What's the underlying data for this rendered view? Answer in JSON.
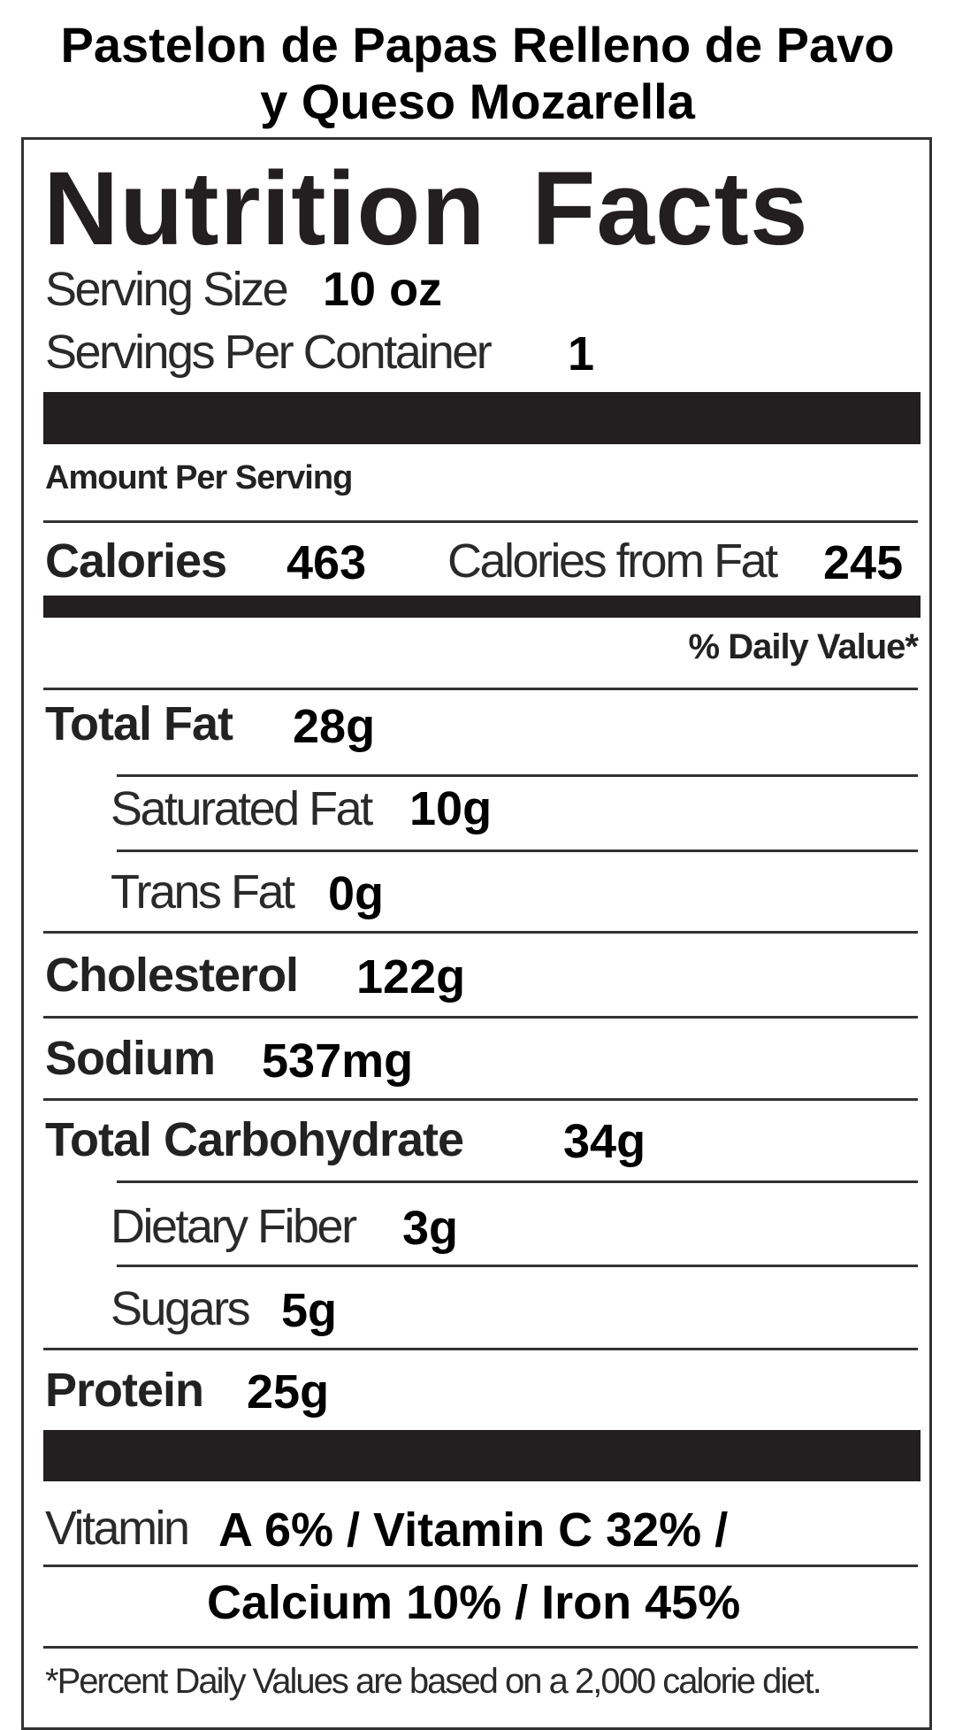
{
  "title": {
    "line1": "Pastelon de Papas Relleno de Pavo",
    "line2": "y Queso Mozarella"
  },
  "label": {
    "heading": "Nutrition Facts",
    "serving_size_label": "Serving Size",
    "serving_size": "10 oz",
    "servings_per_container_label": "Servings Per Container",
    "servings_per_container": "1",
    "amount_per_serving": "Amount Per Serving",
    "calories_label": "Calories",
    "calories": "463",
    "calories_from_fat_label": "Calories from Fat",
    "calories_from_fat": "245",
    "daily_value_header": "% Daily Value*",
    "nutrients": {
      "total_fat": {
        "label": "Total Fat",
        "value": "28g"
      },
      "saturated_fat": {
        "label": "Saturated Fat",
        "value": "10g"
      },
      "trans_fat": {
        "label": "Trans Fat",
        "value": "0g"
      },
      "cholesterol": {
        "label": "Cholesterol",
        "value": "122g"
      },
      "sodium": {
        "label": "Sodium",
        "value": "537mg"
      },
      "total_carbohydrate": {
        "label": "Total Carbohydrate",
        "value": "34g"
      },
      "dietary_fiber": {
        "label": "Dietary Fiber",
        "value": "3g"
      },
      "sugars": {
        "label": "Sugars",
        "value": "5g"
      },
      "protein": {
        "label": "Protein",
        "value": "25g"
      }
    },
    "vitamin_label": "Vitamin",
    "vitamins_line1": "A 6% / Vitamin C 32% /",
    "vitamins_line2": "Calcium 10% / Iron 45%",
    "footnote": "*Percent Daily Values are based on a 2,000 calorie diet."
  }
}
